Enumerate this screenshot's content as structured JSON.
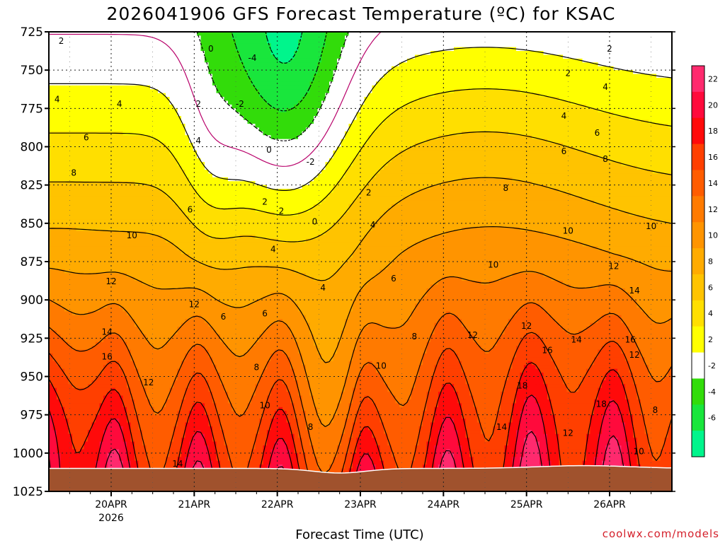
{
  "chart_data": {
    "type": "heatmap",
    "title": "2026041906  GFS Forecast Temperature (ºC) for KSAC",
    "xlabel": "Forecast Time (UTC)",
    "ylabel": "",
    "credit": "coolwx.com/models",
    "y_ticks": [
      "725",
      "750",
      "775",
      "800",
      "825",
      "850",
      "875",
      "900",
      "925",
      "950",
      "975",
      "1000",
      "1025"
    ],
    "y_values": [
      725,
      750,
      775,
      800,
      825,
      850,
      875,
      900,
      925,
      950,
      975,
      1000,
      1025
    ],
    "ylim": [
      725,
      1025
    ],
    "x_ticks": [
      "20APR",
      "21APR",
      "22APR",
      "23APR",
      "24APR",
      "25APR",
      "26APR"
    ],
    "x_tick_year": "2026",
    "xlim_days": [
      19.25,
      26.75
    ],
    "x_tick_days": [
      20,
      21,
      22,
      23,
      24,
      25,
      26
    ],
    "colorbar": {
      "labels": [
        "22",
        "20",
        "18",
        "16",
        "14",
        "12",
        "10",
        "8",
        "6",
        "4",
        "2",
        "-2",
        "-4",
        "-6"
      ],
      "levels": [
        22,
        20,
        18,
        16,
        14,
        12,
        10,
        8,
        6,
        4,
        2,
        -2,
        -4,
        -6
      ],
      "bin_colors": [
        "#ff2a6e",
        "#ff0a3c",
        "#ff0a0a",
        "#ff3f00",
        "#ff5c00",
        "#ff7a00",
        "#ff9400",
        "#ffab00",
        "#ffc300",
        "#ffdf00",
        "#ffff00",
        "#ffffff",
        "#32dc0a",
        "#19e63c",
        "#00f58c"
      ]
    },
    "contour_labels": [
      {
        "text": "2",
        "x": 19.4,
        "p": 731
      },
      {
        "text": "0",
        "x": 21.2,
        "p": 736
      },
      {
        "text": "-4",
        "x": 21.7,
        "p": 742
      },
      {
        "text": "2",
        "x": 25.5,
        "p": 752
      },
      {
        "text": "2",
        "x": 26.0,
        "p": 736
      },
      {
        "text": "4",
        "x": 19.35,
        "p": 769
      },
      {
        "text": "4",
        "x": 20.1,
        "p": 772
      },
      {
        "text": "2",
        "x": 21.05,
        "p": 772
      },
      {
        "text": "-2",
        "x": 21.55,
        "p": 772
      },
      {
        "text": "4",
        "x": 25.45,
        "p": 780
      },
      {
        "text": "4",
        "x": 25.95,
        "p": 761
      },
      {
        "text": "6",
        "x": 19.7,
        "p": 794
      },
      {
        "text": "4",
        "x": 21.05,
        "p": 796
      },
      {
        "text": "0",
        "x": 21.9,
        "p": 802
      },
      {
        "text": "-2",
        "x": 22.4,
        "p": 810
      },
      {
        "text": "6",
        "x": 25.45,
        "p": 803
      },
      {
        "text": "6",
        "x": 25.85,
        "p": 791
      },
      {
        "text": "8",
        "x": 19.55,
        "p": 817
      },
      {
        "text": "8",
        "x": 25.95,
        "p": 808
      },
      {
        "text": "2",
        "x": 21.85,
        "p": 836
      },
      {
        "text": "6",
        "x": 20.95,
        "p": 841
      },
      {
        "text": "2",
        "x": 22.05,
        "p": 842
      },
      {
        "text": "0",
        "x": 22.45,
        "p": 849
      },
      {
        "text": "2",
        "x": 23.1,
        "p": 830
      },
      {
        "text": "8",
        "x": 24.75,
        "p": 827
      },
      {
        "text": "4",
        "x": 23.15,
        "p": 851
      },
      {
        "text": "10",
        "x": 20.25,
        "p": 858
      },
      {
        "text": "10",
        "x": 25.5,
        "p": 855
      },
      {
        "text": "10",
        "x": 26.5,
        "p": 852
      },
      {
        "text": "4",
        "x": 21.95,
        "p": 867
      },
      {
        "text": "10",
        "x": 24.6,
        "p": 877
      },
      {
        "text": "12",
        "x": 26.05,
        "p": 878
      },
      {
        "text": "12",
        "x": 20.0,
        "p": 888
      },
      {
        "text": "4",
        "x": 22.55,
        "p": 892
      },
      {
        "text": "6",
        "x": 23.4,
        "p": 886
      },
      {
        "text": "14",
        "x": 26.3,
        "p": 894
      },
      {
        "text": "12",
        "x": 21.0,
        "p": 903
      },
      {
        "text": "6",
        "x": 21.85,
        "p": 909
      },
      {
        "text": "6",
        "x": 21.35,
        "p": 911
      },
      {
        "text": "14",
        "x": 19.95,
        "p": 921
      },
      {
        "text": "8",
        "x": 23.65,
        "p": 924
      },
      {
        "text": "12",
        "x": 24.35,
        "p": 923
      },
      {
        "text": "12",
        "x": 25.0,
        "p": 917
      },
      {
        "text": "14",
        "x": 25.6,
        "p": 926
      },
      {
        "text": "16",
        "x": 26.25,
        "p": 926
      },
      {
        "text": "16",
        "x": 25.25,
        "p": 933
      },
      {
        "text": "12",
        "x": 26.3,
        "p": 936
      },
      {
        "text": "16",
        "x": 19.95,
        "p": 937
      },
      {
        "text": "10",
        "x": 23.25,
        "p": 943
      },
      {
        "text": "8",
        "x": 21.75,
        "p": 944
      },
      {
        "text": "12",
        "x": 20.45,
        "p": 954
      },
      {
        "text": "18",
        "x": 24.95,
        "p": 956
      },
      {
        "text": "10",
        "x": 21.85,
        "p": 969
      },
      {
        "text": "18",
        "x": 25.9,
        "p": 968
      },
      {
        "text": "8",
        "x": 26.55,
        "p": 972
      },
      {
        "text": "8",
        "x": 22.4,
        "p": 983
      },
      {
        "text": "14",
        "x": 24.7,
        "p": 983
      },
      {
        "text": "12",
        "x": 25.5,
        "p": 987
      },
      {
        "text": "10",
        "x": 26.35,
        "p": 999
      },
      {
        "text": "14",
        "x": 20.8,
        "p": 1007
      }
    ]
  }
}
